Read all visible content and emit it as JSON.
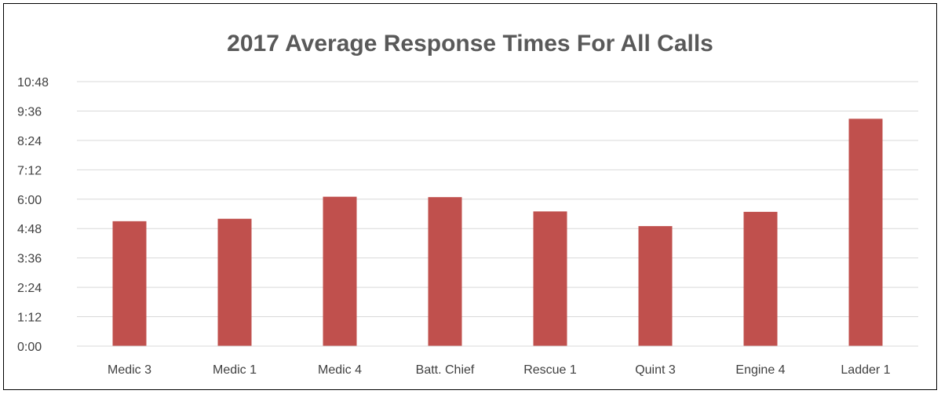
{
  "chart_data": {
    "type": "bar",
    "title": "2017 Average Response Times For All Calls",
    "xlabel": "",
    "ylabel": "",
    "categories": [
      "Medic 3",
      "Medic 1",
      "Medic 4",
      "Batt. Chief",
      "Rescue 1",
      "Quint 3",
      "Engine 4",
      "Ladder 1"
    ],
    "values": [
      "5:06",
      "5:12",
      "6:06",
      "6:05",
      "5:30",
      "4:54",
      "5:29",
      "9:17"
    ],
    "y_ticks": [
      "0:00",
      "1:12",
      "2:24",
      "3:36",
      "4:48",
      "6:00",
      "7:12",
      "8:24",
      "9:36",
      "10:48"
    ],
    "ylim": [
      "0:00",
      "10:48"
    ],
    "grid": true,
    "legend": "none",
    "bar_color": "#C0504D",
    "grid_color": "#D9D9D9"
  }
}
